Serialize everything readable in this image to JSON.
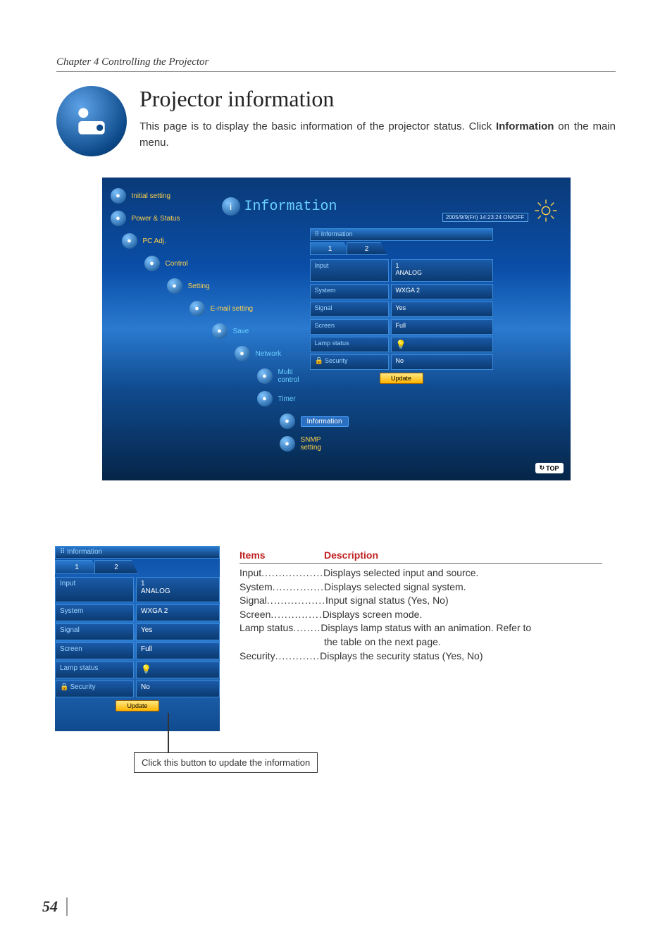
{
  "chapter": "Chapter 4 Controlling the Projector",
  "title": "Projector information",
  "intro_pre": "This page is to display the basic information of the projector status. Click ",
  "intro_bold": "Information",
  "intro_post": " on the main menu.",
  "page_number": "54",
  "screenshot": {
    "info_header": "Information",
    "datetime": "2005/9/9(Fri) 14:23:24  ON/OFF",
    "top_label": "TOP",
    "menu": [
      {
        "label": "Initial setting",
        "indent": 0,
        "color": "#ffd24a"
      },
      {
        "label": "Power & Status",
        "indent": 0,
        "color": "#ffd24a"
      },
      {
        "label": "PC Adj.",
        "indent": 1,
        "color": "#ffd24a"
      },
      {
        "label": "Control",
        "indent": 2,
        "color": "#ffd24a"
      },
      {
        "label": "Setting",
        "indent": 3,
        "color": "#ffd24a"
      },
      {
        "label": "E-mail setting",
        "indent": 4,
        "color": "#ffd24a"
      },
      {
        "label": "Save",
        "indent": 5,
        "color": "#6bd0ff"
      },
      {
        "label": "Network",
        "indent": 6,
        "color": "#6bd0ff"
      },
      {
        "label": "Multi control",
        "indent": 7,
        "color": "#6bd0ff"
      },
      {
        "label": "Timer",
        "indent": 7,
        "color": "#6bd0ff"
      },
      {
        "label": "Information",
        "indent": 8,
        "color": "#ffffff",
        "highlight": true
      },
      {
        "label": "SNMP setting",
        "indent": 8,
        "color": "#ffd24a"
      }
    ],
    "panel": {
      "header": "Information",
      "tabs": [
        "1",
        "2"
      ],
      "active_tab": 0,
      "rows": [
        {
          "k": "Input",
          "v": "1",
          "v2": "ANALOG"
        },
        {
          "k": "System",
          "v": "WXGA 2"
        },
        {
          "k": "Signal",
          "v": "Yes"
        },
        {
          "k": "Screen",
          "v": "Full"
        },
        {
          "k": "Lamp status",
          "v": "",
          "lamp": true
        },
        {
          "k": "Security",
          "v": "No",
          "lock": true
        }
      ],
      "update": "Update"
    }
  },
  "callout": "Click this button to update the information",
  "desc_table": {
    "head_items": "Items",
    "head_desc": "Description",
    "rows": [
      {
        "item": "Input",
        "dots": "..................",
        "desc": "Displays selected input and source."
      },
      {
        "item": "System",
        "dots": "...............",
        "desc": "Displays selected signal system."
      },
      {
        "item": "Signal",
        "dots": ".................",
        "desc": "Input signal status (Yes, No)"
      },
      {
        "item": "Screen",
        "dots": "...............",
        "desc": "Displays screen mode."
      },
      {
        "item": "Lamp status",
        "dots": "........",
        "desc": "Displays lamp status with an animation. Refer to the table on the next page."
      },
      {
        "item": "Security",
        "dots": ".............",
        "desc": "Displays the security status (Yes, No)"
      }
    ]
  }
}
